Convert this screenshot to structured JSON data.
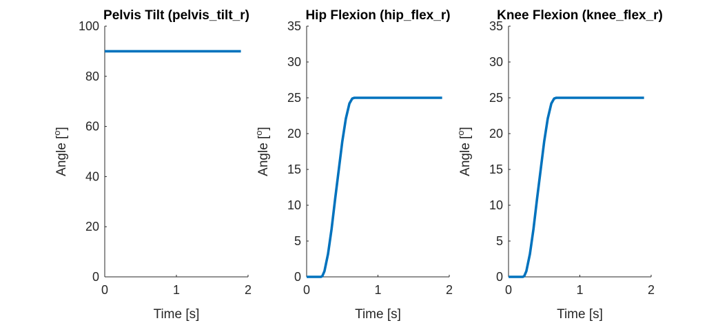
{
  "chart_data": [
    {
      "type": "line",
      "title": "Pelvis Tilt (pelvis_tilt_r)",
      "xlabel": "Time [s]",
      "ylabel": "Angle [°]",
      "ylabel_main": "Angle [",
      "ylabel_sup": "o",
      "ylabel_close": "]",
      "xlim": [
        0,
        2
      ],
      "ylim": [
        0,
        100
      ],
      "xticks": [
        "0",
        "1",
        "2"
      ],
      "yticks": [
        "0",
        "20",
        "40",
        "60",
        "80",
        "100"
      ],
      "grid": false,
      "color": "#0072BD",
      "x": [
        0,
        1.9
      ],
      "y": [
        90,
        90
      ]
    },
    {
      "type": "line",
      "title": "Hip Flexion (hip_flex_r)",
      "xlabel": "Time [s]",
      "ylabel": "Angle [°]",
      "ylabel_main": "Angle [",
      "ylabel_sup": "o",
      "ylabel_close": "]",
      "xlim": [
        0,
        2
      ],
      "ylim": [
        0,
        35
      ],
      "xticks": [
        "0",
        "1",
        "2"
      ],
      "yticks": [
        "0",
        "5",
        "10",
        "15",
        "20",
        "25",
        "30",
        "35"
      ],
      "grid": false,
      "color": "#0072BD",
      "x": [
        0,
        0.2,
        0.22,
        0.25,
        0.3,
        0.35,
        0.4,
        0.45,
        0.5,
        0.55,
        0.6,
        0.64,
        0.67,
        0.7,
        1.9
      ],
      "y": [
        0,
        0,
        0.1,
        0.8,
        3.2,
        6.7,
        10.9,
        14.9,
        18.9,
        22.1,
        24.2,
        24.9,
        25,
        25,
        25
      ]
    },
    {
      "type": "line",
      "title": "Knee Flexion (knee_flex_r)",
      "xlabel": "Time [s]",
      "ylabel": "Angle [°]",
      "ylabel_main": "Angle [",
      "ylabel_sup": "o",
      "ylabel_close": "]",
      "xlim": [
        0,
        2
      ],
      "ylim": [
        0,
        35
      ],
      "xticks": [
        "0",
        "1",
        "2"
      ],
      "yticks": [
        "0",
        "5",
        "10",
        "15",
        "20",
        "25",
        "30",
        "35"
      ],
      "grid": false,
      "color": "#0072BD",
      "x": [
        0,
        0.2,
        0.22,
        0.25,
        0.3,
        0.35,
        0.4,
        0.45,
        0.5,
        0.55,
        0.6,
        0.64,
        0.67,
        0.7,
        1.9
      ],
      "y": [
        0,
        0,
        0.1,
        0.8,
        3.2,
        6.7,
        10.9,
        14.9,
        18.9,
        22.1,
        24.2,
        24.9,
        25,
        25,
        25
      ]
    }
  ]
}
